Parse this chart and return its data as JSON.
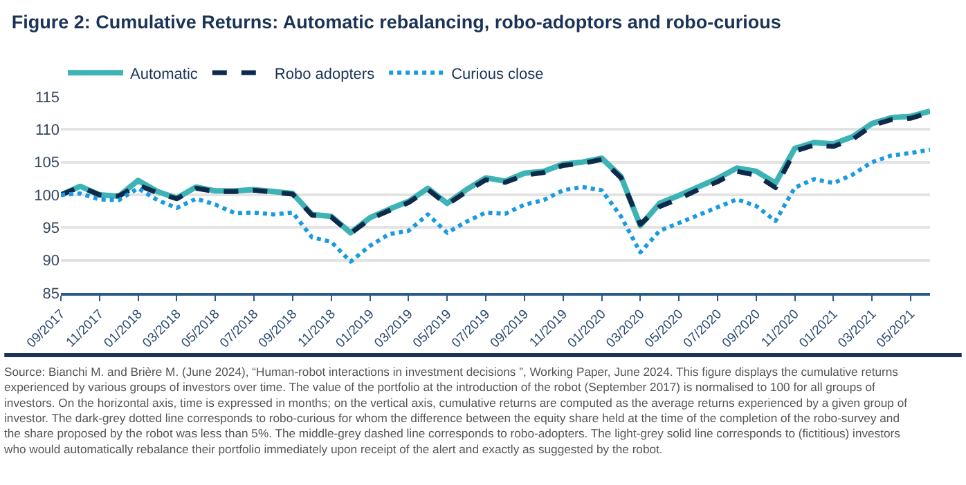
{
  "chart_data": {
    "type": "line",
    "title": "Figure 2: Cumulative Returns: Automatic rebalancing, robo-adoptors and robo-curious",
    "categories": [
      "09/2017",
      null,
      "11/2017",
      null,
      "01/2018",
      null,
      "03/2018",
      null,
      "05/2018",
      null,
      "07/2018",
      null,
      "09/2018",
      null,
      "11/2018",
      null,
      "01/2019",
      null,
      "03/2019",
      null,
      "05/2019",
      null,
      "07/2019",
      null,
      "09/2019",
      null,
      "11/2019",
      null,
      "01/2020",
      null,
      "03/2020",
      null,
      "05/2020",
      null,
      "07/2020",
      null,
      "09/2020",
      null,
      "11/2020",
      null,
      "01/2021",
      null,
      "03/2021",
      null,
      "05/2021",
      null
    ],
    "series": [
      {
        "name": "Automatic",
        "color": "#3db3b5",
        "line_style": "solid",
        "values": [
          100,
          101.3,
          100.0,
          99.8,
          102.2,
          100.5,
          99.5,
          101.2,
          100.6,
          100.6,
          100.8,
          100.5,
          100.2,
          97.0,
          96.7,
          94.2,
          96.5,
          97.8,
          99.0,
          101.0,
          98.7,
          100.8,
          102.6,
          102.1,
          103.3,
          103.6,
          104.7,
          105.0,
          105.6,
          102.8,
          95.3,
          98.7,
          99.9,
          101.2,
          102.5,
          104.1,
          103.6,
          101.8,
          107.1,
          108.0,
          107.8,
          108.9,
          110.9,
          111.8,
          112.0,
          112.8
        ]
      },
      {
        "name": "Robo adopters",
        "color": "#0e2a4a",
        "line_style": "dashed",
        "values": [
          100,
          101.2,
          100.0,
          99.8,
          101.5,
          100.3,
          99.4,
          101.0,
          100.5,
          100.5,
          100.7,
          100.4,
          100.1,
          96.9,
          96.6,
          94.1,
          96.3,
          97.6,
          98.8,
          100.8,
          98.5,
          100.5,
          102.3,
          101.9,
          103.0,
          103.4,
          104.5,
          104.8,
          105.4,
          102.6,
          95.5,
          98.2,
          99.4,
          100.8,
          102.0,
          103.6,
          103.0,
          101.1,
          106.7,
          107.6,
          107.4,
          108.5,
          110.6,
          111.5,
          111.7,
          112.6
        ]
      },
      {
        "name": "Curious close",
        "color": "#1a9be0",
        "line_style": "dotted",
        "values": [
          100,
          100.2,
          99.3,
          99.2,
          101.0,
          99.2,
          98.0,
          99.4,
          98.5,
          97.2,
          97.3,
          97.0,
          97.3,
          93.5,
          92.8,
          89.8,
          92.2,
          94.0,
          94.5,
          97.0,
          94.2,
          95.9,
          97.3,
          97.1,
          98.5,
          99.2,
          100.7,
          101.2,
          100.7,
          96.7,
          91.2,
          94.5,
          95.7,
          96.9,
          98.1,
          99.3,
          98.3,
          96.0,
          101.1,
          102.4,
          101.8,
          103.1,
          105.0,
          106.0,
          106.4,
          106.9
        ]
      }
    ],
    "ylim": [
      85,
      115
    ],
    "yticks": [
      85,
      90,
      95,
      100,
      105,
      110,
      115
    ],
    "grid": "y",
    "legend": "top left",
    "marker": "none",
    "annotations": [
      "Source: Bianchi M. and Brière M. (June 2024), “Human-robot interactions in investment decisions ”, Working Paper, June 2024. This figure displays the cumulative returns experienced by various groups of investors over time. The value of the portfolio at the introduction of the robot (September 2017) is normalised to 100 for all groups of investors. On the horizontal axis, time is expressed in months; on the vertical axis, cumulative returns are computed as the average returns experienced by a given group of investor. The dark-grey dotted line corresponds to robo-curious for whom the difference between the equity share held at the time of the completion of the robo-survey and the share proposed by the robot was less than 5%. The middle-grey dashed line corresponds to robo-adopters. The light-grey solid line corresponds to (fictitious) investors who would automatically rebalance their portfolio immediately upon receipt of the alert and exactly as suggested by the robot."
    ]
  }
}
